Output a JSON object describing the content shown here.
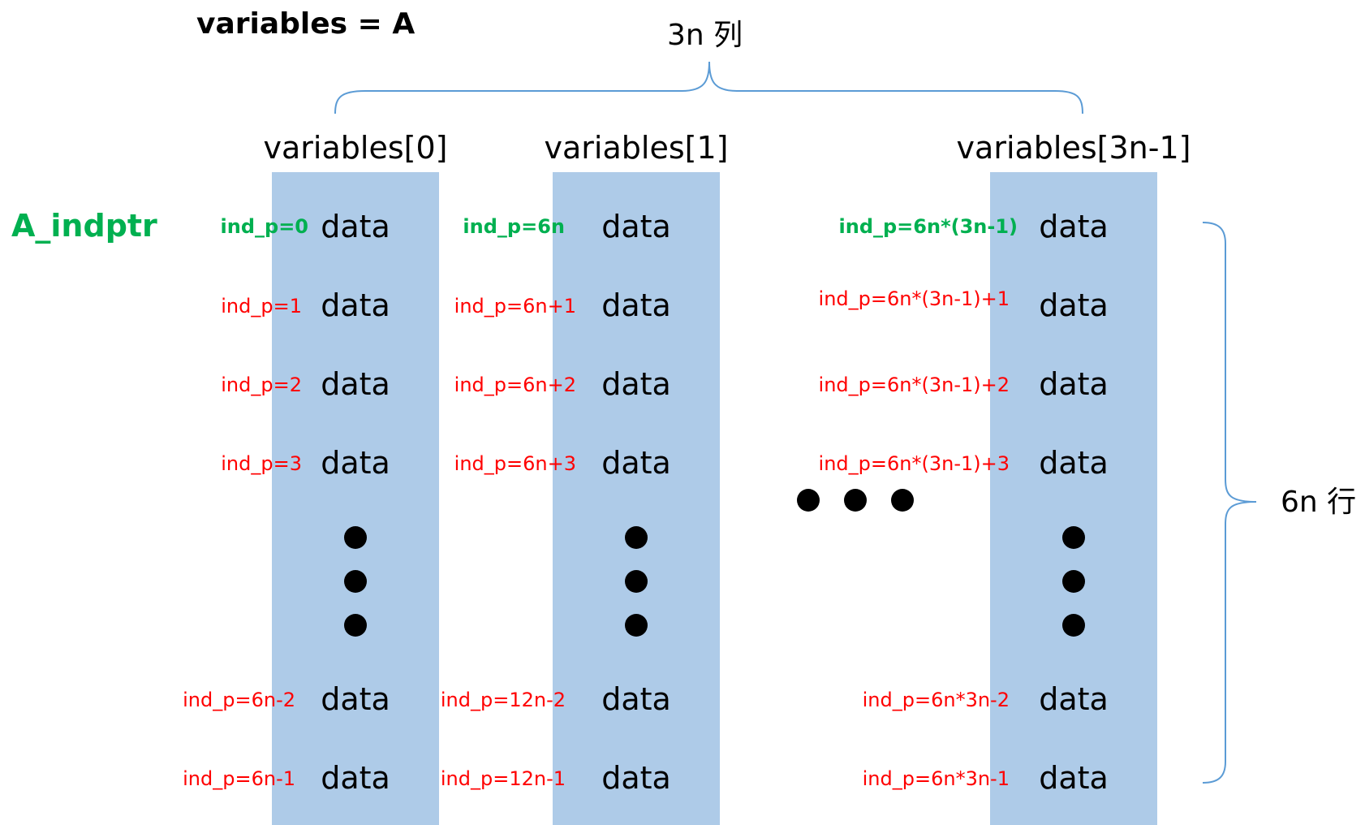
{
  "title": "variables = A",
  "top_brace_label": "3n 列",
  "right_brace_label": "6n 行",
  "indptr_label": "A_indptr",
  "colors": {
    "column_fill": "#aecbe8",
    "brace_stroke": "#5b9bd5",
    "first_index": "#00b050",
    "other_index": "#ff0000",
    "text": "#000000"
  },
  "columns": [
    {
      "header": "variables[0]",
      "first_index": "ind_p=0",
      "indices_top": [
        "ind_p=1",
        "ind_p=2",
        "ind_p=3"
      ],
      "indices_bottom": [
        "ind_p=6n-2",
        "ind_p=6n-1"
      ],
      "cell_text": "data"
    },
    {
      "header": "variables[1]",
      "first_index": "ind_p=6n",
      "indices_top": [
        "ind_p=6n+1",
        "ind_p=6n+2",
        "ind_p=6n+3"
      ],
      "indices_bottom": [
        "ind_p=12n-2",
        "ind_p=12n-1"
      ],
      "cell_text": "data"
    },
    {
      "header": "variables[3n-1]",
      "first_index": "ind_p=6n*(3n-1)",
      "indices_top": [
        "ind_p=6n*(3n-1)+1",
        "ind_p=6n*(3n-1)+2",
        "ind_p=6n*(3n-1)+3"
      ],
      "indices_bottom": [
        "ind_p=6n*3n-2",
        "ind_p=6n*3n-1"
      ],
      "cell_text": "data"
    }
  ]
}
